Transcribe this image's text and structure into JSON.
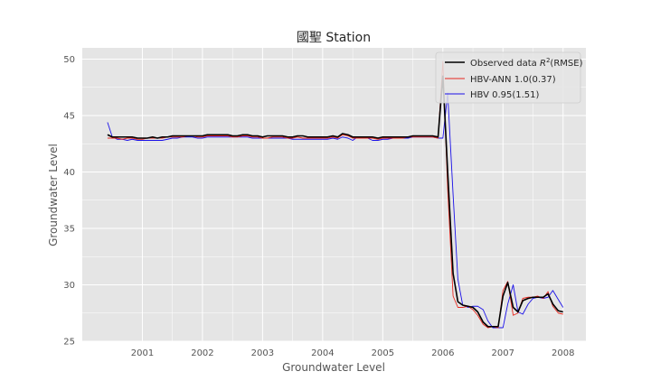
{
  "chart_data": {
    "type": "line",
    "title": "國聖 Station",
    "xlabel": "Groundwater Level",
    "ylabel": "Groundwater Level",
    "xlim": [
      2000.0,
      2008.38
    ],
    "ylim": [
      25,
      51
    ],
    "xticks": [
      2001,
      2002,
      2003,
      2004,
      2005,
      2006,
      2007,
      2008
    ],
    "yticks": [
      25,
      30,
      35,
      40,
      45,
      50
    ],
    "grid": true,
    "legend_position": "top-right",
    "legend": {
      "observed_prefix": "Observed data ",
      "observed_math_base": "R",
      "observed_math_exp": "2",
      "observed_suffix": "(RMSE)"
    },
    "x": [
      2000.42,
      2000.5,
      2000.58,
      2000.67,
      2000.75,
      2000.83,
      2000.92,
      2001.0,
      2001.08,
      2001.17,
      2001.25,
      2001.33,
      2001.42,
      2001.5,
      2001.58,
      2001.67,
      2001.75,
      2001.83,
      2001.92,
      2002.0,
      2002.08,
      2002.17,
      2002.25,
      2002.33,
      2002.42,
      2002.5,
      2002.58,
      2002.67,
      2002.75,
      2002.83,
      2002.92,
      2003.0,
      2003.08,
      2003.17,
      2003.25,
      2003.33,
      2003.42,
      2003.5,
      2003.58,
      2003.67,
      2003.75,
      2003.83,
      2003.92,
      2004.0,
      2004.08,
      2004.17,
      2004.25,
      2004.33,
      2004.42,
      2004.5,
      2004.58,
      2004.67,
      2004.75,
      2004.83,
      2004.92,
      2005.0,
      2005.08,
      2005.17,
      2005.25,
      2005.33,
      2005.42,
      2005.5,
      2005.58,
      2005.67,
      2005.75,
      2005.83,
      2005.92,
      2006.0,
      2006.08,
      2006.17,
      2006.25,
      2006.33,
      2006.42,
      2006.5,
      2006.58,
      2006.67,
      2006.75,
      2006.83,
      2006.92,
      2007.0,
      2007.08,
      2007.17,
      2007.25,
      2007.33,
      2007.42,
      2007.5,
      2007.58,
      2007.67,
      2007.75,
      2007.83,
      2007.92,
      2008.0
    ],
    "series": [
      {
        "name": "Observed data",
        "color": "#000000",
        "values": [
          43.3,
          43.1,
          43.1,
          43.1,
          43.1,
          43.1,
          43.0,
          43.0,
          43.0,
          43.1,
          43.0,
          43.1,
          43.1,
          43.2,
          43.2,
          43.2,
          43.2,
          43.2,
          43.2,
          43.2,
          43.3,
          43.3,
          43.3,
          43.3,
          43.3,
          43.2,
          43.2,
          43.3,
          43.3,
          43.2,
          43.2,
          43.1,
          43.2,
          43.2,
          43.2,
          43.2,
          43.1,
          43.1,
          43.2,
          43.2,
          43.1,
          43.1,
          43.1,
          43.1,
          43.1,
          43.2,
          43.1,
          43.4,
          43.3,
          43.1,
          43.1,
          43.1,
          43.1,
          43.1,
          43.0,
          43.1,
          43.1,
          43.1,
          43.1,
          43.1,
          43.1,
          43.2,
          43.2,
          43.2,
          43.2,
          43.2,
          43.1,
          48.5,
          40.0,
          31.0,
          28.5,
          28.2,
          28.1,
          28.0,
          27.6,
          26.7,
          26.3,
          26.3,
          26.3,
          29.0,
          30.2,
          28.0,
          27.6,
          28.6,
          28.8,
          28.9,
          28.9,
          28.9,
          29.2,
          28.3,
          27.7,
          27.6
        ]
      },
      {
        "name": "HBV-ANN 1.0(0.37)",
        "color": "#e8281e",
        "values": [
          43.0,
          43.0,
          43.0,
          42.9,
          43.0,
          43.0,
          42.9,
          42.9,
          43.0,
          43.0,
          43.0,
          43.0,
          43.1,
          43.1,
          43.1,
          43.1,
          43.2,
          43.2,
          43.1,
          43.1,
          43.2,
          43.2,
          43.2,
          43.2,
          43.2,
          43.1,
          43.1,
          43.2,
          43.2,
          43.1,
          43.1,
          43.0,
          43.0,
          43.1,
          43.1,
          43.1,
          43.0,
          43.0,
          43.1,
          43.0,
          43.0,
          43.0,
          43.0,
          43.0,
          43.0,
          43.1,
          43.0,
          43.3,
          43.2,
          43.0,
          43.0,
          43.0,
          43.0,
          43.0,
          42.9,
          43.0,
          43.0,
          43.0,
          43.0,
          43.0,
          43.1,
          43.1,
          43.1,
          43.1,
          43.1,
          43.1,
          43.0,
          49.8,
          38.5,
          29.0,
          28.0,
          28.0,
          28.1,
          27.8,
          27.3,
          26.5,
          26.2,
          26.3,
          26.2,
          29.5,
          30.3,
          27.3,
          27.5,
          28.8,
          28.9,
          28.9,
          29.0,
          28.8,
          29.4,
          28.1,
          27.5,
          27.4
        ]
      },
      {
        "name": "HBV 0.95(1.51)",
        "color": "#1a10e8",
        "values": [
          44.4,
          43.1,
          42.9,
          42.9,
          42.8,
          42.9,
          42.8,
          42.8,
          42.8,
          42.8,
          42.8,
          42.8,
          42.9,
          43.0,
          43.0,
          43.1,
          43.1,
          43.1,
          43.0,
          43.0,
          43.1,
          43.1,
          43.1,
          43.1,
          43.1,
          43.1,
          43.1,
          43.1,
          43.1,
          43.0,
          43.0,
          43.0,
          43.0,
          43.0,
          43.0,
          43.0,
          43.0,
          42.9,
          42.9,
          42.9,
          42.9,
          42.9,
          42.9,
          42.9,
          42.9,
          43.0,
          42.9,
          43.1,
          43.0,
          42.8,
          43.1,
          43.1,
          43.0,
          42.8,
          42.8,
          42.9,
          42.9,
          43.0,
          43.0,
          43.0,
          43.0,
          43.1,
          43.1,
          43.1,
          43.1,
          43.1,
          43.0,
          43.0,
          47.0,
          38.0,
          30.5,
          28.2,
          28.0,
          28.1,
          28.1,
          27.8,
          26.8,
          26.2,
          26.2,
          26.2,
          28.3,
          30.0,
          27.6,
          27.4,
          28.3,
          28.8,
          28.9,
          28.8,
          28.9,
          29.5,
          28.7,
          28.0
        ]
      }
    ]
  }
}
